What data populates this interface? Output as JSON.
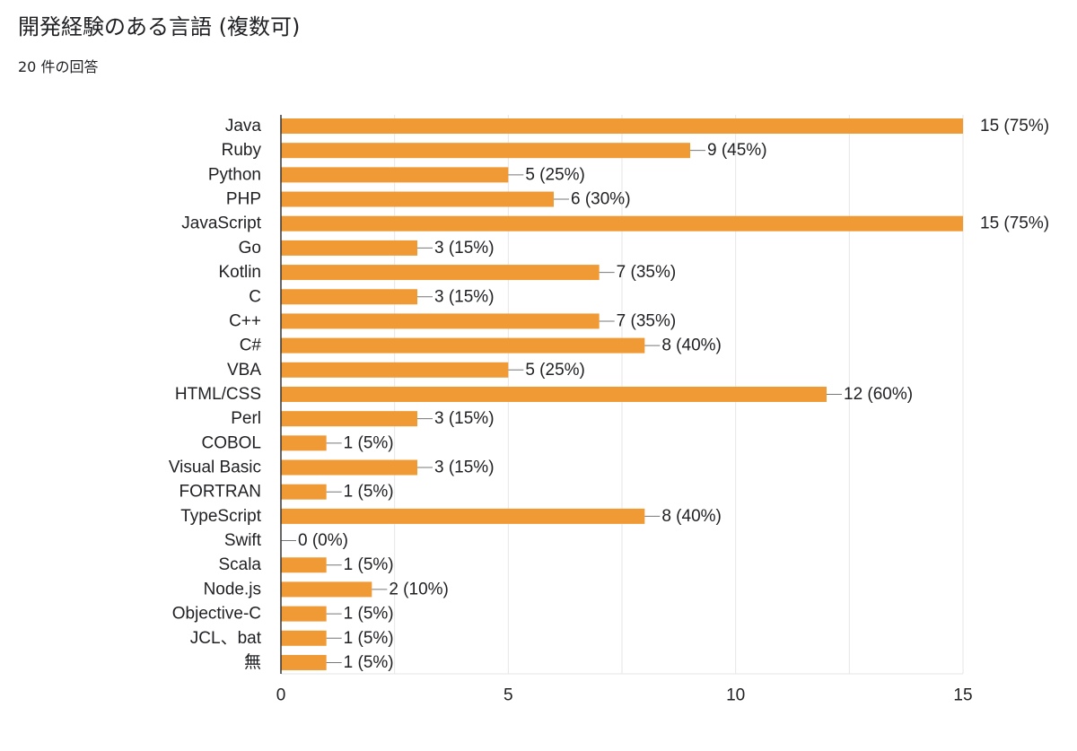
{
  "form": {
    "question": "開発経験のある言語 (複数可)",
    "response_count": "20 件の回答"
  },
  "chart_data": {
    "type": "bar",
    "orientation": "horizontal",
    "title": "開発経験のある言語 (複数可)",
    "categories": [
      "Java",
      "Ruby",
      "Python",
      "PHP",
      "JavaScript",
      "Go",
      "Kotlin",
      "C",
      "C++",
      "C#",
      "VBA",
      "HTML/CSS",
      "Perl",
      "COBOL",
      "Visual Basic",
      "FORTRAN",
      "TypeScript",
      "Swift",
      "Scala",
      "Node.js",
      "Objective-C",
      "JCL、bat",
      "無"
    ],
    "values": [
      15,
      9,
      5,
      6,
      15,
      3,
      7,
      3,
      7,
      8,
      5,
      12,
      3,
      1,
      3,
      1,
      8,
      0,
      1,
      2,
      1,
      1,
      1
    ],
    "data_labels": [
      "15 (75%)",
      "9 (45%)",
      "5 (25%)",
      "6 (30%)",
      "15 (75%)",
      "3 (15%)",
      "7 (35%)",
      "3 (15%)",
      "7 (35%)",
      "8 (40%)",
      "5 (25%)",
      "12 (60%)",
      "3 (15%)",
      "1 (5%)",
      "3 (15%)",
      "1 (5%)",
      "8 (40%)",
      "0 (0%)",
      "1 (5%)",
      "2 (10%)",
      "1 (5%)",
      "1 (5%)",
      "1 (5%)"
    ],
    "xlim": [
      0,
      15
    ],
    "x_ticks": [
      "0",
      "5",
      "10",
      "15"
    ],
    "grid": true,
    "bar_color": "#f09a35",
    "grid_color": "#e6e6e6",
    "axis_color": "#333333"
  }
}
